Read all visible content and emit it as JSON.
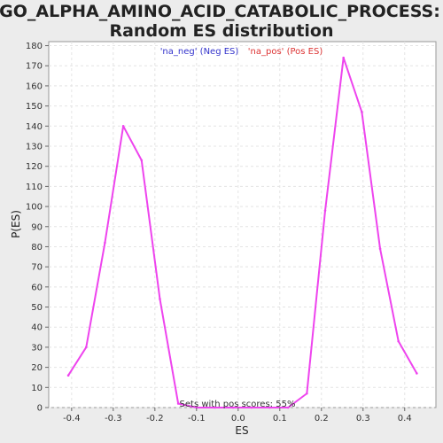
{
  "chart_data": {
    "type": "line",
    "title_line1": "GO_ALPHA_AMINO_ACID_CATABOLIC_PROCESS:",
    "title_line2": "Random ES distribution",
    "xlabel": "ES",
    "ylabel": "P(ES)",
    "xlim": [
      -0.455,
      0.475
    ],
    "ylim": [
      0,
      182
    ],
    "x_ticks": [
      -0.4,
      -0.3,
      -0.2,
      -0.1,
      0.0,
      0.1,
      0.2,
      0.3,
      0.4
    ],
    "x_tick_labels": [
      "-0.4",
      "-0.3",
      "-0.2",
      "-0.1",
      "0.0",
      "0.1",
      "0.2",
      "0.3",
      "0.4"
    ],
    "y_ticks": [
      0,
      10,
      20,
      30,
      40,
      50,
      60,
      70,
      80,
      90,
      100,
      110,
      120,
      130,
      140,
      150,
      160,
      170,
      180
    ],
    "y_tick_labels": [
      "0",
      "10",
      "20",
      "30",
      "40",
      "50",
      "60",
      "70",
      "80",
      "90",
      "100",
      "110",
      "120",
      "130",
      "140",
      "150",
      "160",
      "170",
      "180"
    ],
    "grid": true,
    "legend": [
      {
        "label": "'na_neg' (Neg ES)",
        "color": "#3333cc"
      },
      {
        "label": "'na_pos' (Pos ES)",
        "color": "#dd3333"
      }
    ],
    "annotation": "Sets with pos scores: 55%",
    "series": [
      {
        "color": "#ee44ee",
        "x": [
          -0.408,
          -0.365,
          -0.32,
          -0.276,
          -0.232,
          -0.188,
          -0.144,
          -0.1,
          -0.056,
          -0.012,
          0.032,
          0.076,
          0.12,
          0.165,
          0.209,
          0.253,
          0.297,
          0.341,
          0.385,
          0.429
        ],
        "y": [
          16,
          30,
          82,
          140,
          123,
          54,
          2,
          0,
          0,
          0,
          0,
          0,
          0,
          7,
          98,
          174,
          147,
          79,
          33,
          17
        ]
      }
    ]
  }
}
